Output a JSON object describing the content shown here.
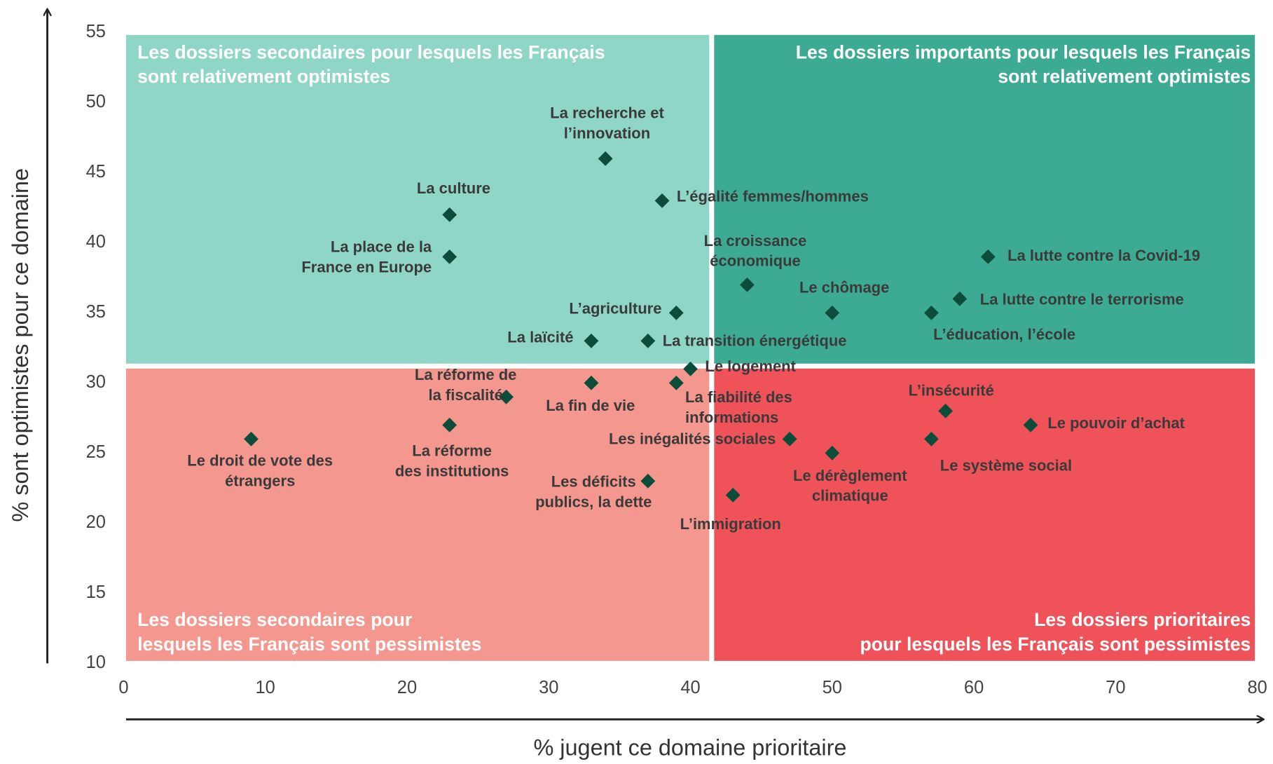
{
  "chart_data": {
    "type": "scatter",
    "xlabel": "% jugent ce domaine prioritaire",
    "ylabel": "% sont optimistes pour ce domaine",
    "xlim": [
      0,
      80
    ],
    "xticks": [
      0,
      10,
      20,
      30,
      40,
      50,
      60,
      70,
      80
    ],
    "ylim": [
      10,
      55
    ],
    "yticks": [
      10,
      15,
      20,
      25,
      30,
      35,
      40,
      45,
      50,
      55
    ],
    "quadrant_split": {
      "x": 41.5,
      "y": 31.2
    },
    "quadrants": [
      {
        "title": [
          "Les dossiers secondaires pour lesquels les Français",
          "sont relativement optimistes"
        ],
        "color": "#8fd6c6"
      },
      {
        "title": [
          "Les dossiers importants pour lesquels les Français",
          "sont relativement optimistes"
        ],
        "color": "#3dab93"
      },
      {
        "title": [
          "Les dossiers secondaires pour",
          "lesquels les Français sont pessimistes"
        ],
        "color": "#f4978e"
      },
      {
        "title": [
          "Les dossiers prioritaires",
          "pour lesquels les Français sont pessimistes"
        ],
        "color": "#ef5359"
      }
    ],
    "color": "#0b4d3a",
    "labels": [
      [
        "La recherche et",
        "l’innovation"
      ],
      [
        "L’égalité femmes/hommes"
      ],
      [
        "La culture"
      ],
      [
        "La place de la",
        "France en Europe"
      ],
      [
        "La croissance",
        "économique"
      ],
      [
        "La lutte contre la Covid-19"
      ],
      [
        "Le chômage"
      ],
      [
        "La lutte contre le terrorisme"
      ],
      [
        "L’éducation, l’école"
      ],
      [
        "L’agriculture"
      ],
      [
        "La laïcité"
      ],
      [
        "La transition énergétique"
      ],
      [
        "Le logement"
      ],
      [
        "La réforme de",
        "la fiscalité"
      ],
      [
        "La fin de vie"
      ],
      [
        "La fiabilité des",
        "informations"
      ],
      [
        "L’insécurité"
      ],
      [
        "Le pouvoir d’achat"
      ],
      [
        "La réforme",
        "des institutions"
      ],
      [
        "Le droit de vote des",
        "étrangers"
      ],
      [
        "Les inégalités sociales"
      ],
      [
        "Le système social"
      ],
      [
        "Le dérèglement",
        "climatique"
      ],
      [
        "Les déficits",
        "publics, la dette"
      ],
      [
        "L’immigration"
      ]
    ],
    "x": [
      34,
      38,
      23,
      23,
      44,
      61,
      50,
      59,
      57,
      39,
      33,
      37,
      40,
      27,
      33,
      39,
      58,
      64,
      23,
      9,
      47,
      57,
      50,
      37,
      43
    ],
    "y": [
      46,
      43,
      42,
      39,
      37,
      39,
      35,
      36,
      35,
      35,
      33,
      33,
      31,
      29,
      30,
      30,
      28,
      27,
      27,
      26,
      26,
      26,
      25,
      23,
      22
    ]
  }
}
